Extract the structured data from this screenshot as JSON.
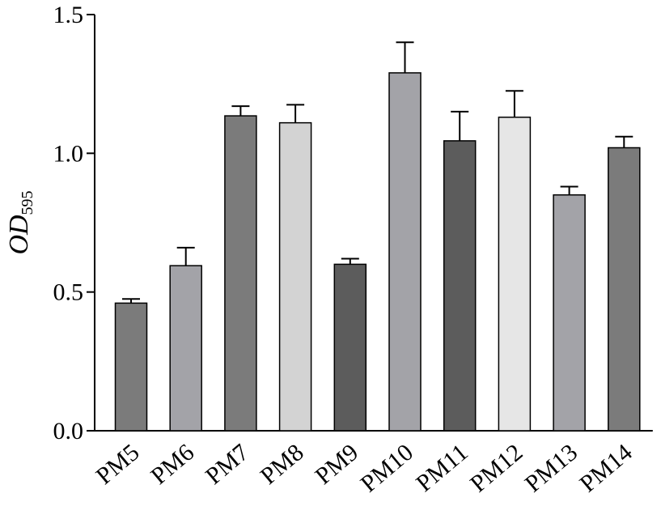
{
  "chart_data": {
    "type": "bar",
    "title": "",
    "xlabel": "",
    "ylabel": "OD",
    "ylabel_subscript": "595",
    "ylim": [
      0,
      1.5
    ],
    "yticks": [
      "0.0",
      "0.5",
      "1.0",
      "1.5"
    ],
    "grid": false,
    "categories": [
      "PM5",
      "PM6",
      "PM7",
      "PM8",
      "PM9",
      "PM10",
      "PM11",
      "PM12",
      "PM13",
      "PM14"
    ],
    "values": [
      0.46,
      0.595,
      1.135,
      1.11,
      0.6,
      1.29,
      1.045,
      1.13,
      0.85,
      1.02
    ],
    "errors": [
      0.015,
      0.065,
      0.035,
      0.065,
      0.02,
      0.11,
      0.105,
      0.095,
      0.03,
      0.04
    ],
    "colors": [
      "#7b7b7b",
      "#a3a3a8",
      "#7b7b7b",
      "#d3d3d3",
      "#5c5c5c",
      "#a3a3a8",
      "#5c5c5c",
      "#e6e6e6",
      "#a3a3a8",
      "#7b7b7b"
    ]
  }
}
